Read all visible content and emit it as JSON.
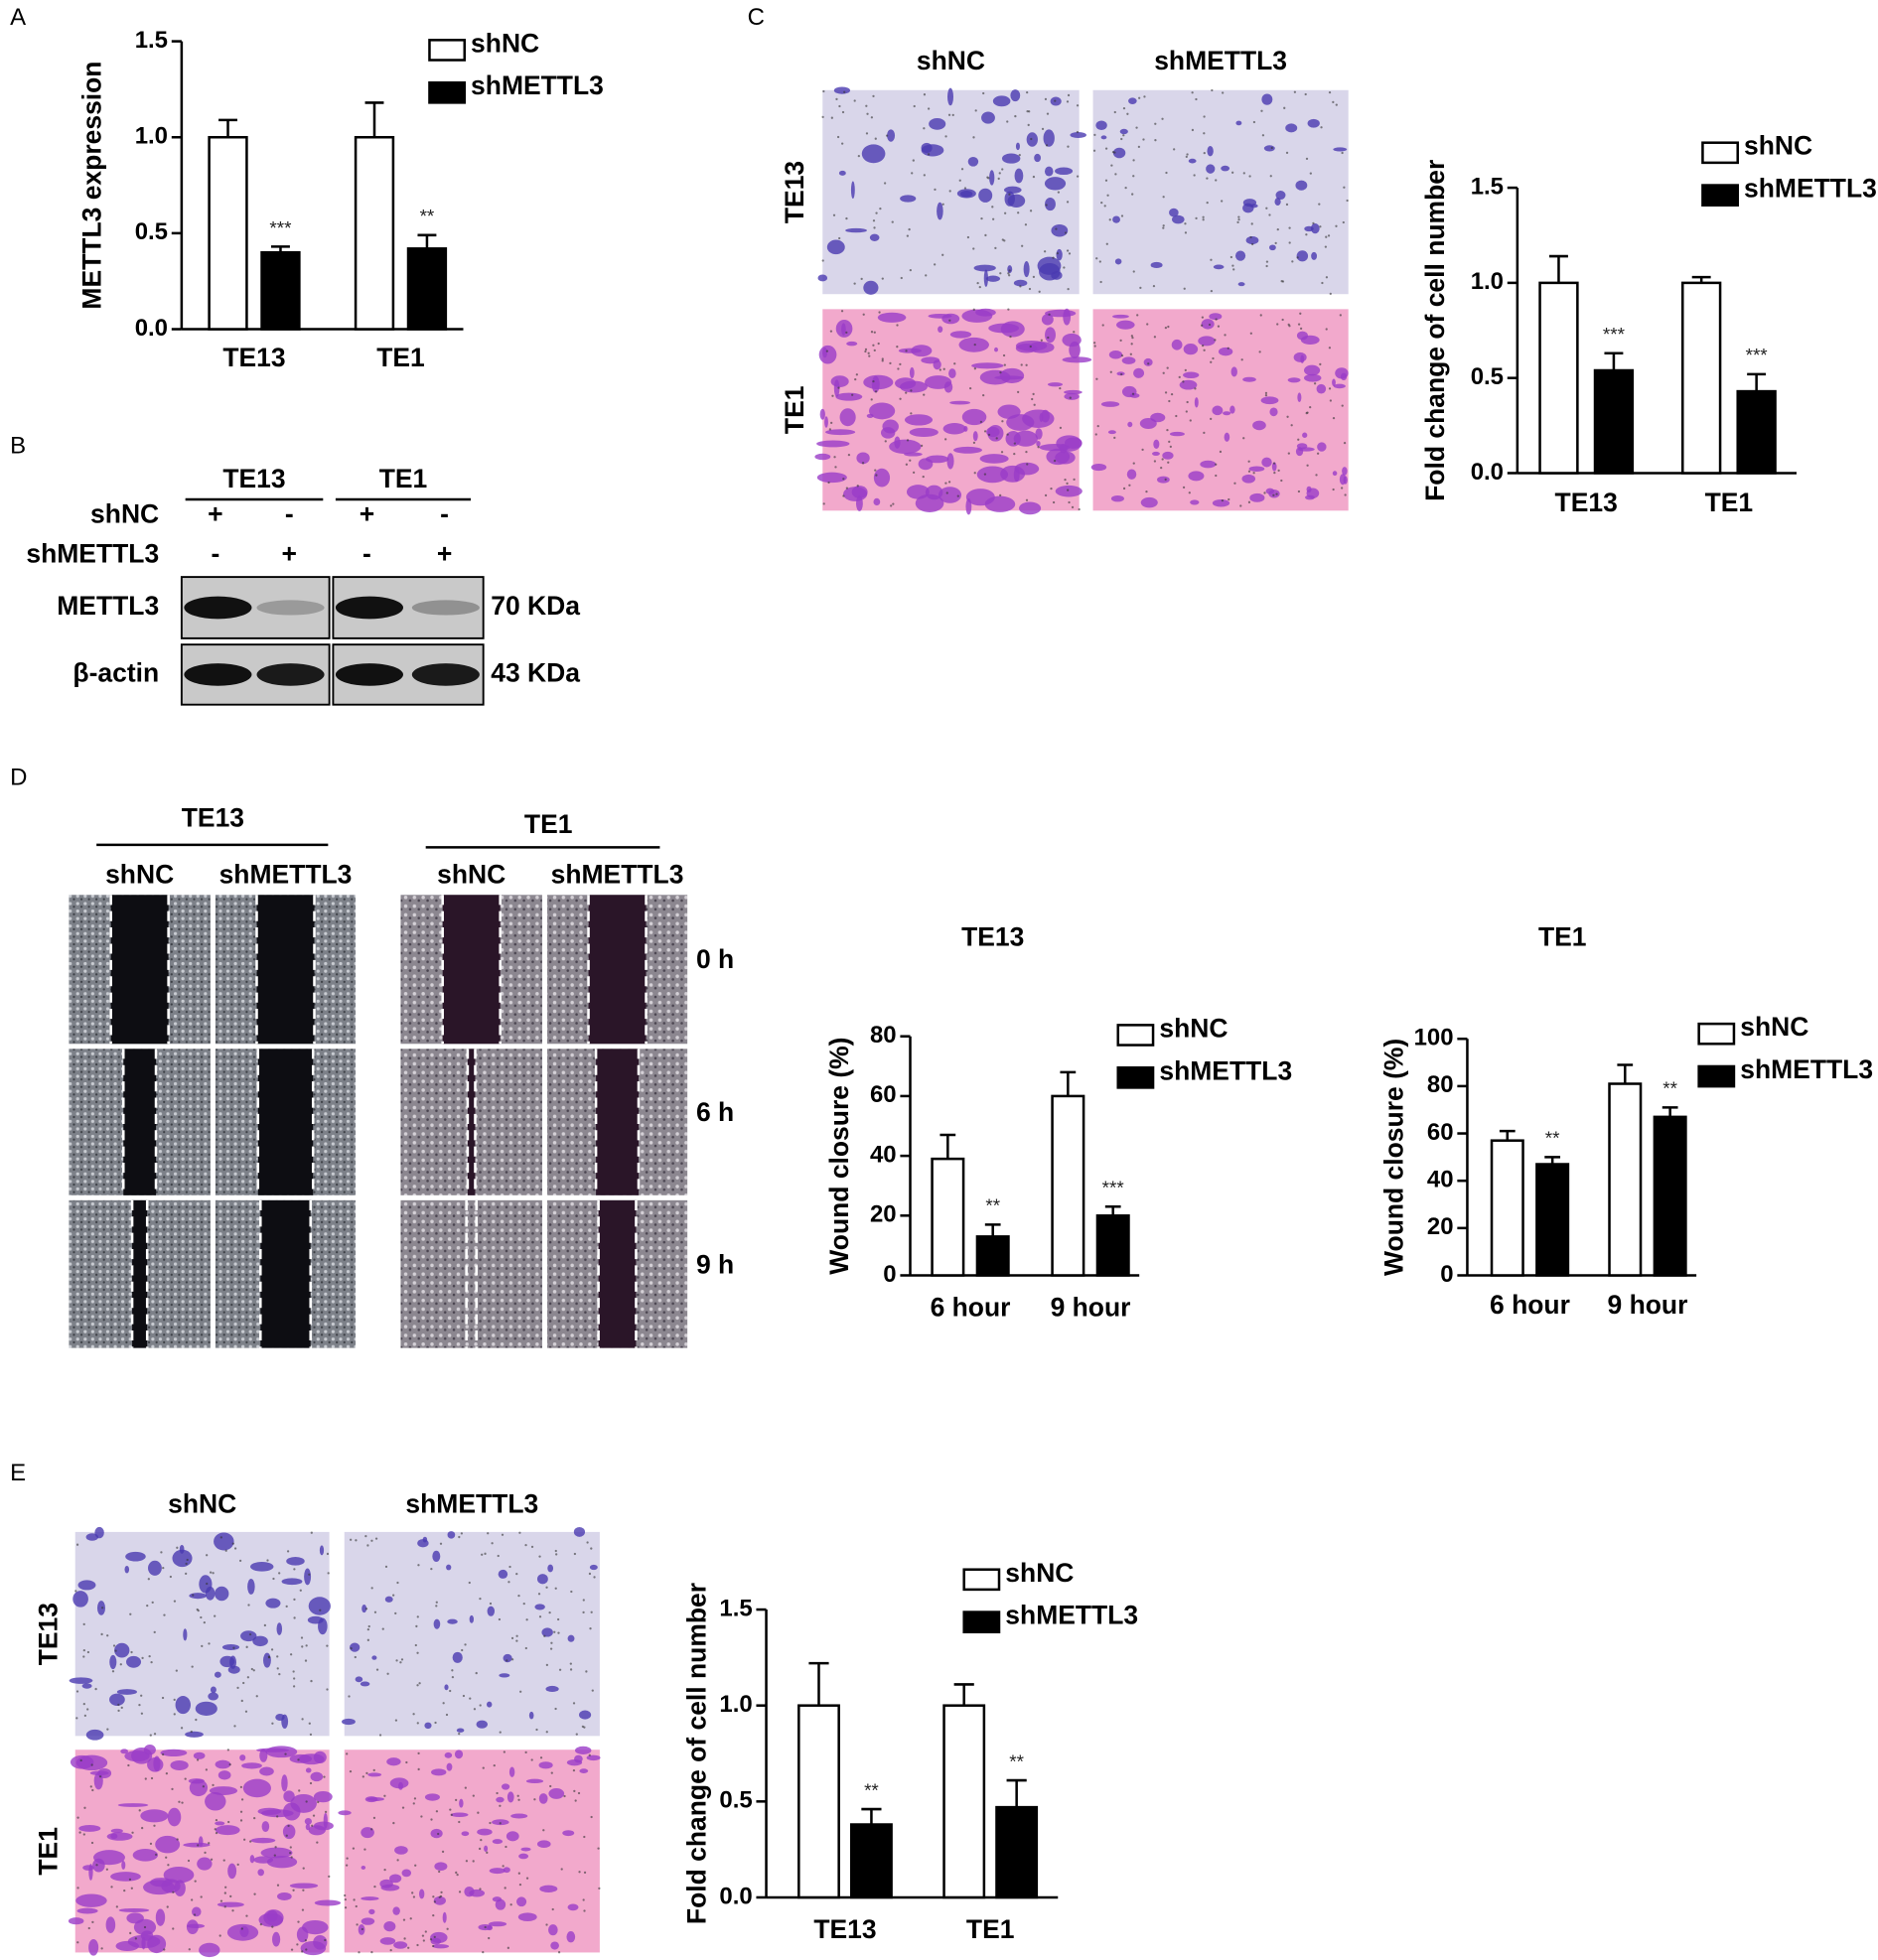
{
  "figure": {
    "panel_letters": [
      "A",
      "B",
      "C",
      "D",
      "E"
    ],
    "blot": {
      "groups": [
        "TE13",
        "TE1"
      ],
      "rows": [
        {
          "label": "shNC",
          "signs": [
            "+",
            "-",
            "+",
            "-"
          ]
        },
        {
          "label": "shMETTL3",
          "signs": [
            "-",
            "+",
            "-",
            "+"
          ]
        }
      ],
      "bands": [
        {
          "label": "METTL3",
          "size": "70 KDa"
        },
        {
          "label": "β-actin",
          "size": "43 KDa"
        }
      ]
    },
    "transwell_c": {
      "columns": [
        "shNC",
        "shMETTL3"
      ],
      "rows": [
        "TE13",
        "TE1"
      ]
    },
    "wound_d": {
      "groups": [
        {
          "label": "TE13",
          "columns": [
            "shNC",
            "shMETTL3"
          ]
        },
        {
          "label": "TE1",
          "columns": [
            "shNC",
            "shMETTL3"
          ]
        }
      ],
      "times": [
        "0 h",
        "6 h",
        "9 h"
      ]
    },
    "transwell_e": {
      "columns": [
        "shNC",
        "shMETTL3"
      ],
      "rows": [
        "TE13",
        "TE1"
      ]
    }
  },
  "chart_data": [
    {
      "type": "bar",
      "ylabel": "METTL3 expression",
      "categories": [
        "TE13",
        "TE1"
      ],
      "series": [
        {
          "name": "shNC",
          "color": "#ffffff",
          "values": [
            1.0,
            1.0
          ],
          "errors": [
            0.09,
            0.18
          ]
        },
        {
          "name": "shMETTL3",
          "color": "#000000",
          "values": [
            0.4,
            0.42
          ],
          "errors": [
            0.03,
            0.07
          ],
          "significance": [
            "***",
            "**"
          ]
        }
      ],
      "ylim": [
        0,
        1.5
      ],
      "yticks": [
        {
          "value": 0,
          "label": "0.0"
        },
        0.5,
        {
          "value": 1,
          "label": "1.0"
        },
        1.5
      ]
    },
    {
      "type": "bar",
      "ylabel": "Fold change of cell number",
      "categories": [
        "TE13",
        "TE1"
      ],
      "series": [
        {
          "name": "shNC",
          "color": "#ffffff",
          "values": [
            1.0,
            1.0
          ],
          "errors": [
            0.14,
            0.03
          ]
        },
        {
          "name": "shMETTL3",
          "color": "#000000",
          "values": [
            0.54,
            0.43
          ],
          "errors": [
            0.09,
            0.09
          ],
          "significance": [
            "***",
            "***"
          ]
        }
      ],
      "ylim": [
        0,
        1.5
      ],
      "yticks": [
        {
          "value": 0,
          "label": "0.0"
        },
        0.5,
        {
          "value": 1,
          "label": "1.0"
        },
        1.5
      ]
    },
    {
      "type": "bar",
      "title": "TE13",
      "ylabel": "Wound closure (%)",
      "categories": [
        "6 hour",
        "9 hour"
      ],
      "series": [
        {
          "name": "shNC",
          "color": "#ffffff",
          "values": [
            39,
            60
          ],
          "errors": [
            8,
            8
          ]
        },
        {
          "name": "shMETTL3",
          "color": "#000000",
          "values": [
            13,
            20
          ],
          "errors": [
            4,
            3
          ],
          "significance": [
            "**",
            "***"
          ]
        }
      ],
      "ylim": [
        0,
        80
      ],
      "yticks": [
        0,
        20,
        40,
        60,
        80
      ]
    },
    {
      "type": "bar",
      "title": "TE1",
      "ylabel": "Wound closure (%)",
      "categories": [
        "6 hour",
        "9 hour"
      ],
      "series": [
        {
          "name": "shNC",
          "color": "#ffffff",
          "values": [
            57,
            81
          ],
          "errors": [
            4,
            8
          ]
        },
        {
          "name": "shMETTL3",
          "color": "#000000",
          "values": [
            47,
            67
          ],
          "errors": [
            3,
            4
          ],
          "significance": [
            "**",
            "**"
          ]
        }
      ],
      "ylim": [
        0,
        100
      ],
      "yticks": [
        0,
        20,
        40,
        60,
        80,
        100
      ]
    },
    {
      "type": "bar",
      "ylabel": "Fold change of cell number",
      "categories": [
        "TE13",
        "TE1"
      ],
      "series": [
        {
          "name": "shNC",
          "color": "#ffffff",
          "values": [
            1.0,
            1.0
          ],
          "errors": [
            0.22,
            0.11
          ]
        },
        {
          "name": "shMETTL3",
          "color": "#000000",
          "values": [
            0.38,
            0.47
          ],
          "errors": [
            0.08,
            0.14
          ],
          "significance": [
            "**",
            "**"
          ]
        }
      ],
      "ylim": [
        0,
        1.5
      ],
      "yticks": [
        {
          "value": 0,
          "label": "0.0"
        },
        0.5,
        {
          "value": 1,
          "label": "1.0"
        },
        1.5
      ]
    }
  ]
}
